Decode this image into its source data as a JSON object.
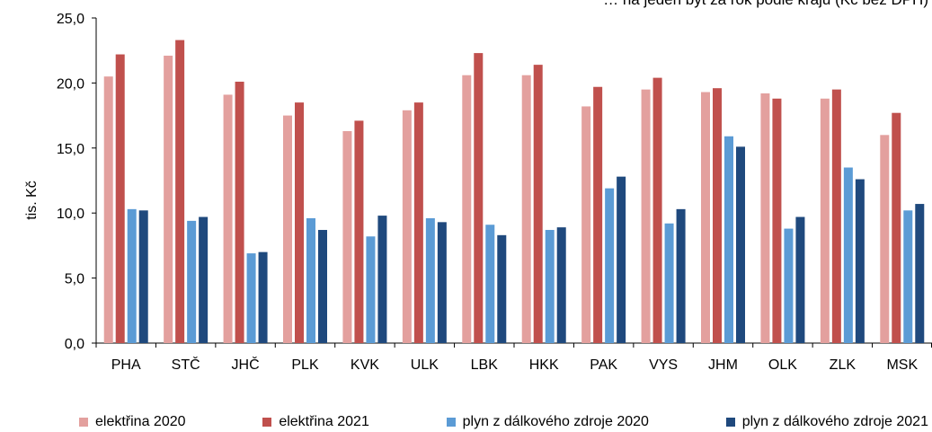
{
  "chart_data": {
    "type": "bar",
    "title": "… na jeden byt za rok podle krajů (Kč bez DPH)",
    "ylabel": "tis. Kč",
    "ylim": [
      0,
      25
    ],
    "yticks": [
      "0,0",
      "5,0",
      "10,0",
      "15,0",
      "20,0",
      "25,0"
    ],
    "grid": false,
    "legend_position": "bottom",
    "categories": [
      "PHA",
      "STČ",
      "JHČ",
      "PLK",
      "KVK",
      "ULK",
      "LBK",
      "HKK",
      "PAK",
      "VYS",
      "JHM",
      "OLK",
      "ZLK",
      "MSK"
    ],
    "series": [
      {
        "name": "elektřina 2020",
        "color": "#E3A09E",
        "values": [
          20.5,
          22.1,
          19.1,
          17.5,
          16.3,
          17.9,
          20.6,
          20.6,
          18.2,
          19.5,
          19.3,
          19.2,
          18.8,
          16.0
        ]
      },
      {
        "name": "elektřina 2021",
        "color": "#C0504D",
        "values": [
          22.2,
          23.3,
          20.1,
          18.5,
          17.1,
          18.5,
          22.3,
          21.4,
          19.7,
          20.4,
          19.6,
          18.8,
          19.5,
          17.7
        ]
      },
      {
        "name": "plyn z dálkového zdroje 2020",
        "color": "#5B9BD5",
        "values": [
          10.3,
          9.4,
          6.9,
          9.6,
          8.2,
          9.6,
          9.1,
          8.7,
          11.9,
          9.2,
          15.9,
          8.8,
          13.5,
          10.2
        ]
      },
      {
        "name": "plyn z dálkového zdroje 2021",
        "color": "#1F497D",
        "values": [
          10.2,
          9.7,
          7.0,
          8.7,
          9.8,
          9.3,
          8.3,
          8.9,
          12.8,
          10.3,
          15.1,
          9.7,
          12.6,
          10.7
        ]
      }
    ]
  }
}
